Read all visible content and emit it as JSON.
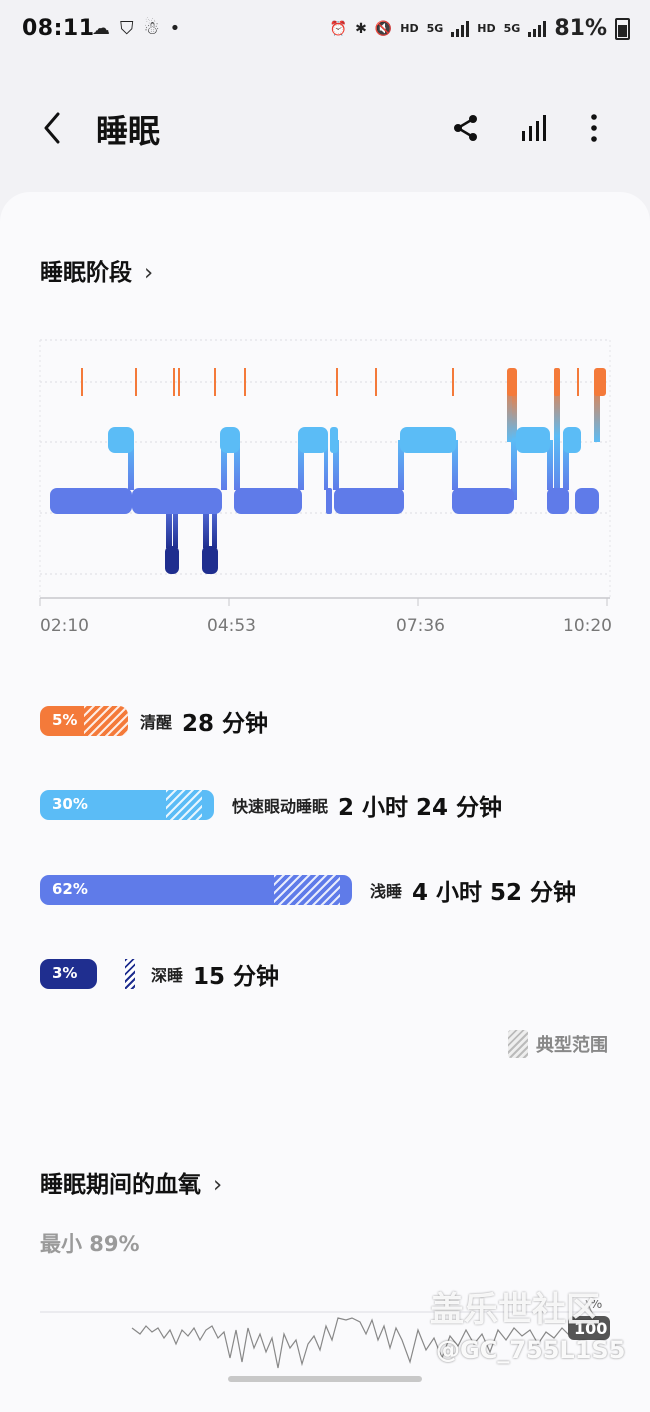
{
  "status_bar": {
    "time": "08:11",
    "battery": "81%",
    "network_labels": [
      "HD",
      "5G",
      "HD",
      "5G"
    ]
  },
  "header": {
    "title": "睡眠"
  },
  "stages": {
    "title": "睡眠阶段",
    "chevron": "›",
    "time_labels": [
      "02:10",
      "04:53",
      "07:36",
      "10:20"
    ],
    "colors": {
      "awake": "#f47a3a",
      "rem": "#5bbcf6",
      "light": "#5f7be9",
      "deep": "#1f2e8f"
    },
    "legend": [
      {
        "pct": "5%",
        "label": "清醒",
        "duration": "28 分钟",
        "color": "#f47a3a"
      },
      {
        "pct": "30%",
        "label": "快速眼动睡眠",
        "duration": "2 小时 24 分钟",
        "color": "#5bbcf6"
      },
      {
        "pct": "62%",
        "label": "浅睡",
        "duration": "4 小时 52 分钟",
        "color": "#5f7be9"
      },
      {
        "pct": "3%",
        "label": "深睡",
        "duration": "15 分钟",
        "color": "#1f2e8f"
      }
    ],
    "typical_range": "典型范围"
  },
  "blood_oxygen": {
    "title": "睡眠期间的血氧",
    "min_text": "最小 89%",
    "scale_top": "100",
    "scale_unit": "%"
  },
  "watermark": {
    "line1": "盖乐世社区",
    "line2": "@GC_755L1S5"
  }
}
